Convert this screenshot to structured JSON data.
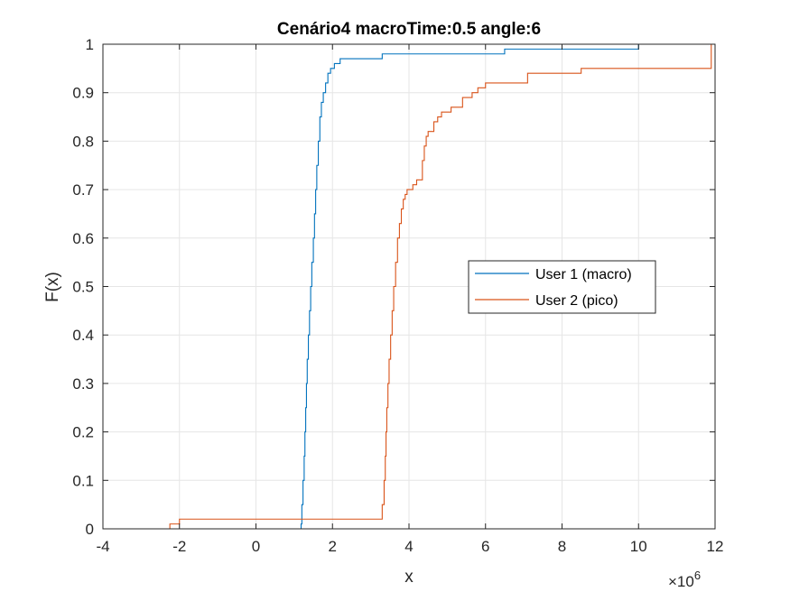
{
  "chart_data": {
    "type": "line",
    "title": "Cenário4 macroTime:0.5 angle:6",
    "xlabel": "x",
    "ylabel": "F(x)",
    "xlim": [
      -4000000,
      12000000
    ],
    "ylim": [
      0,
      1
    ],
    "x_ticks": [
      -4,
      -2,
      0,
      2,
      4,
      6,
      8,
      10,
      12
    ],
    "x_tick_labels": [
      "-4",
      "-2",
      "0",
      "2",
      "4",
      "6",
      "8",
      "10",
      "12"
    ],
    "x_exponent_base": "×10",
    "x_exponent_power": "6",
    "y_ticks": [
      0,
      0.1,
      0.2,
      0.3,
      0.4,
      0.5,
      0.6,
      0.7,
      0.8,
      0.9,
      1
    ],
    "y_tick_labels": [
      "0",
      "0.1",
      "0.2",
      "0.3",
      "0.4",
      "0.5",
      "0.6",
      "0.7",
      "0.8",
      "0.9",
      "1"
    ],
    "grid": true,
    "legend_position": "center-right",
    "series": [
      {
        "name": "User 1 (macro)",
        "color": "#0072BD",
        "step": true,
        "points": [
          [
            1150000,
            0
          ],
          [
            1180000,
            0.01
          ],
          [
            1200000,
            0.05
          ],
          [
            1230000,
            0.1
          ],
          [
            1260000,
            0.15
          ],
          [
            1280000,
            0.2
          ],
          [
            1300000,
            0.25
          ],
          [
            1320000,
            0.3
          ],
          [
            1340000,
            0.35
          ],
          [
            1370000,
            0.4
          ],
          [
            1400000,
            0.45
          ],
          [
            1430000,
            0.5
          ],
          [
            1460000,
            0.55
          ],
          [
            1500000,
            0.6
          ],
          [
            1530000,
            0.65
          ],
          [
            1560000,
            0.7
          ],
          [
            1590000,
            0.75
          ],
          [
            1630000,
            0.8
          ],
          [
            1670000,
            0.85
          ],
          [
            1710000,
            0.88
          ],
          [
            1760000,
            0.9
          ],
          [
            1820000,
            0.92
          ],
          [
            1880000,
            0.94
          ],
          [
            1950000,
            0.95
          ],
          [
            2050000,
            0.96
          ],
          [
            2200000,
            0.97
          ],
          [
            3300000,
            0.98
          ],
          [
            6500000,
            0.99
          ],
          [
            10000000,
            1.0
          ]
        ]
      },
      {
        "name": "User 2 (pico)",
        "color": "#D95319",
        "step": true,
        "points": [
          [
            -2300000,
            0
          ],
          [
            -2250000,
            0.01
          ],
          [
            -2000000,
            0.02
          ],
          [
            3250000,
            0.02
          ],
          [
            3300000,
            0.05
          ],
          [
            3350000,
            0.1
          ],
          [
            3380000,
            0.15
          ],
          [
            3400000,
            0.2
          ],
          [
            3420000,
            0.25
          ],
          [
            3450000,
            0.3
          ],
          [
            3480000,
            0.35
          ],
          [
            3520000,
            0.4
          ],
          [
            3560000,
            0.45
          ],
          [
            3600000,
            0.5
          ],
          [
            3650000,
            0.55
          ],
          [
            3700000,
            0.6
          ],
          [
            3750000,
            0.63
          ],
          [
            3800000,
            0.66
          ],
          [
            3850000,
            0.68
          ],
          [
            3900000,
            0.69
          ],
          [
            3950000,
            0.7
          ],
          [
            4100000,
            0.71
          ],
          [
            4200000,
            0.72
          ],
          [
            4350000,
            0.76
          ],
          [
            4400000,
            0.79
          ],
          [
            4450000,
            0.81
          ],
          [
            4500000,
            0.82
          ],
          [
            4650000,
            0.84
          ],
          [
            4750000,
            0.85
          ],
          [
            4850000,
            0.86
          ],
          [
            5100000,
            0.87
          ],
          [
            5400000,
            0.89
          ],
          [
            5650000,
            0.9
          ],
          [
            5800000,
            0.91
          ],
          [
            6000000,
            0.92
          ],
          [
            7100000,
            0.94
          ],
          [
            8500000,
            0.95
          ],
          [
            11900000,
            1.0
          ]
        ]
      }
    ]
  }
}
